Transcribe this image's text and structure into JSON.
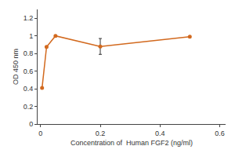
{
  "chart_data": {
    "type": "line",
    "x": [
      0.005,
      0.02,
      0.05,
      0.2,
      0.5
    ],
    "values": [
      0.41,
      0.875,
      1.0,
      0.88,
      0.99
    ],
    "errors": [
      0.0,
      0.0,
      0.0,
      0.09,
      0.0
    ],
    "color": "#D2691E",
    "marker": "circle",
    "xlabel": "Concentration of  Human FGF2 (ng/ml)",
    "ylabel": "OD 450 nm",
    "xlim": [
      -0.01,
      0.62
    ],
    "ylim": [
      0,
      1.3
    ],
    "xticks": [
      0,
      0.2,
      0.4,
      0.6
    ],
    "yticks": [
      0,
      0.2,
      0.4,
      0.6,
      0.8,
      1.0,
      1.2
    ],
    "grid": false
  }
}
